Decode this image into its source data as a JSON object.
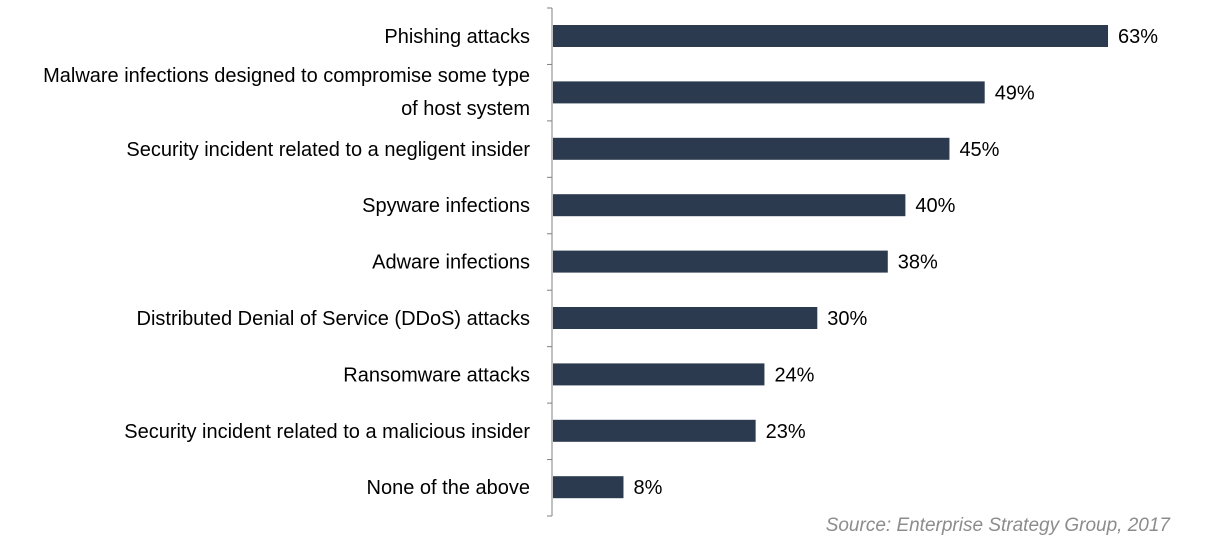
{
  "chart_data": {
    "type": "bar",
    "orientation": "horizontal",
    "categories": [
      [
        "Phishing attacks"
      ],
      [
        "Malware infections designed to compromise some type",
        "of host system"
      ],
      [
        "Security incident related to a negligent insider"
      ],
      [
        "Spyware infections"
      ],
      [
        "Adware infections"
      ],
      [
        "Distributed Denial of Service (DDoS) attacks"
      ],
      [
        "Ransomware attacks"
      ],
      [
        "Security incident related to a malicious insider"
      ],
      [
        "None of the above"
      ]
    ],
    "values": [
      63,
      49,
      45,
      40,
      38,
      30,
      24,
      23,
      8
    ],
    "value_labels": [
      "63%",
      "49%",
      "45%",
      "40%",
      "38%",
      "30%",
      "24%",
      "23%",
      "8%"
    ],
    "xlim": [
      0,
      100
    ],
    "bar_color": "#2b3a4e",
    "grid": false,
    "legend": "none"
  },
  "source": "Source: Enterprise Strategy Group, 2017"
}
